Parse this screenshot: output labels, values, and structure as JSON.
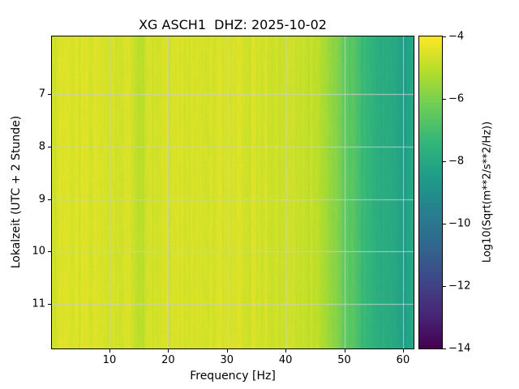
{
  "figure": {
    "background": "#ffffff",
    "text_color": "#000000"
  },
  "chart_data": {
    "type": "heatmap",
    "subtype": "spectrogram",
    "title": "XG ASCH1  DHZ: 2025-10-02",
    "xlabel": "Frequency [Hz]",
    "ylabel": "Lokalzeit (UTC + 2 Stunde)",
    "colorbar_label": "Log10(Sqrt(m**2/s**2/Hz))",
    "x_axis": {
      "range_hz": [
        0.2,
        61.8
      ],
      "ticks": [
        10,
        20,
        30,
        40,
        50,
        60
      ],
      "tick_labels": [
        "10",
        "20",
        "30",
        "40",
        "50",
        "60"
      ]
    },
    "y_axis": {
      "range_hours": [
        5.9,
        11.85
      ],
      "ticks": [
        7,
        8,
        9,
        10,
        11
      ],
      "tick_labels": [
        "7",
        "8",
        "9",
        "10",
        "11"
      ]
    },
    "colorbar": {
      "value_range": [
        -14,
        -4
      ],
      "ticks": [
        -4,
        -6,
        -8,
        -10,
        -12,
        -14
      ],
      "tick_labels": [
        "−4",
        "−6",
        "−8",
        "−10",
        "−12",
        "−14"
      ],
      "colormap": "viridis",
      "stops": [
        "#440154",
        "#482878",
        "#3e4989",
        "#31688e",
        "#26828e",
        "#1f9e89",
        "#35b779",
        "#6ece58",
        "#b5de2b",
        "#fde725"
      ]
    },
    "grid": {
      "show": true,
      "color": "#c6ced4",
      "alpha": 0.9
    },
    "spectrum_profile_hz_log10": [
      [
        0.2,
        -4.7
      ],
      [
        2,
        -4.55
      ],
      [
        8,
        -4.55
      ],
      [
        14,
        -4.6
      ],
      [
        15.3,
        -5.15
      ],
      [
        16.5,
        -4.7
      ],
      [
        25,
        -4.55
      ],
      [
        35,
        -4.65
      ],
      [
        42,
        -4.75
      ],
      [
        45,
        -5.0
      ],
      [
        47,
        -5.5
      ],
      [
        49,
        -6.0
      ],
      [
        51,
        -6.6
      ],
      [
        53,
        -7.2
      ],
      [
        55,
        -7.6
      ],
      [
        57,
        -7.9
      ],
      [
        59,
        -8.1
      ],
      [
        60,
        -8.5
      ],
      [
        61,
        -8.2
      ],
      [
        61.8,
        -8.0
      ]
    ],
    "striation_amplitude": 0.24,
    "texture_amplitude": 0.1
  }
}
